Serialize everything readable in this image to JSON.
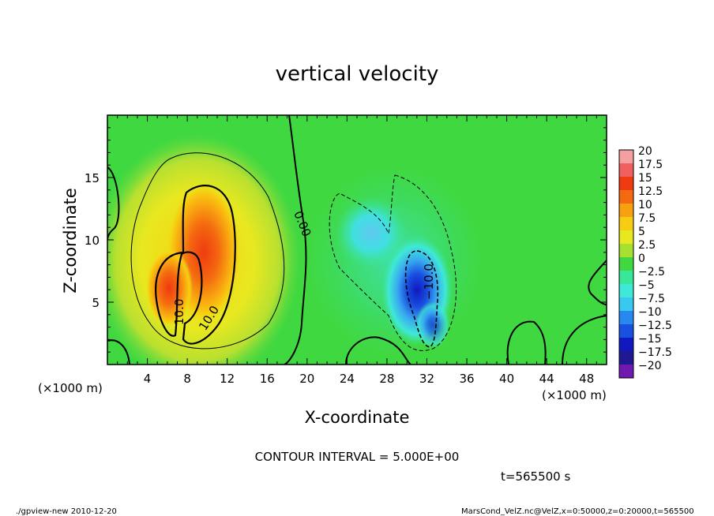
{
  "chart_data": {
    "type": "heatmap",
    "title": "vertical velocity",
    "xlabel": "X-coordinate",
    "ylabel": "Z-coordinate",
    "x_unit": "(×1000 m)",
    "y_unit": "(×1000 m)",
    "xlim": [
      0,
      50
    ],
    "ylim": [
      0,
      20
    ],
    "x_ticks": [
      "4",
      "8",
      "12",
      "16",
      "20",
      "24",
      "28",
      "32",
      "36",
      "40",
      "44",
      "48"
    ],
    "y_ticks": [
      "5",
      "10",
      "15"
    ],
    "colorbar": {
      "labels": [
        "20",
        "17.5",
        "15",
        "12.5",
        "10",
        "7.5",
        "5",
        "2.5",
        "0",
        "−2.5",
        "−5",
        "−7.5",
        "−10",
        "−12.5",
        "−15",
        "−17.5",
        "−20"
      ],
      "colors": [
        "#f4a0a0",
        "#f06060",
        "#f03a10",
        "#f46a10",
        "#f8a010",
        "#f8cc10",
        "#e8e820",
        "#a8e030",
        "#40d840",
        "#38e898",
        "#40e8d8",
        "#38c8f0",
        "#2888f0",
        "#1850e0",
        "#1018c0",
        "#201890",
        "#7018b0"
      ]
    },
    "contour_labels": [
      "0.00",
      "10.0",
      "10.0",
      "−10.0"
    ],
    "contour_interval_text": "CONTOUR INTERVAL = 5.000E+00",
    "time_text": "t=565500 s",
    "footer_left": "./gpview-new  2010-12-20",
    "footer_right": "MarsCond_VelZ.nc@VelZ,x=0:50000,z=0:20000,t=565500"
  }
}
